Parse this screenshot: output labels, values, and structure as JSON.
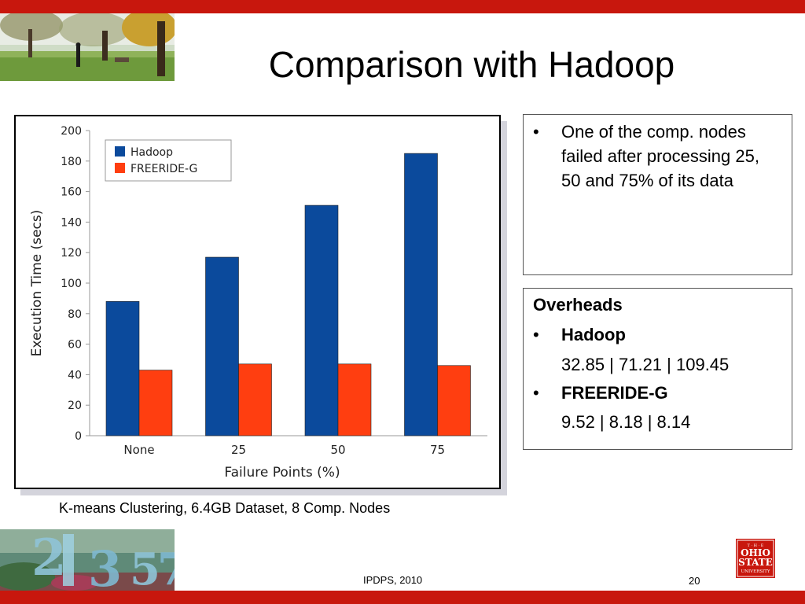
{
  "slide": {
    "title": "Comparison with Hadoop",
    "caption": "K-means Clustering, 6.4GB Dataset, 8 Comp. Nodes",
    "footer": "IPDPS, 2010",
    "page_number": "20",
    "accent_color": "#c8170d"
  },
  "notes_box": {
    "bullet": "•",
    "text": "One of the comp. nodes failed after processing 25, 50 and 75% of its data"
  },
  "overheads_box": {
    "title": "Overheads",
    "items": [
      {
        "name": "Hadoop",
        "values": "32.85 | 71.21 | 109.45"
      },
      {
        "name": "FREERIDE-G",
        "values": "9.52 | 8.18 | 8.14"
      }
    ]
  },
  "logo": {
    "top": "T · H · E",
    "line1": "OHIO",
    "line2": "STATE",
    "line3": "UNIVERSITY"
  },
  "chart_data": {
    "type": "bar",
    "title": "",
    "xlabel": "Failure Points (%)",
    "ylabel": "Execution Time (secs)",
    "categories": [
      "None",
      "25",
      "50",
      "75"
    ],
    "series": [
      {
        "name": "Hadoop",
        "color": "#0b4a9c",
        "values": [
          88,
          117,
          151,
          185
        ]
      },
      {
        "name": "FREERIDE-G",
        "color": "#ff3e10",
        "values": [
          43,
          47,
          47,
          46
        ]
      }
    ],
    "ylim": [
      0,
      200
    ],
    "yticks": [
      0,
      20,
      40,
      60,
      80,
      100,
      120,
      140,
      160,
      180,
      200
    ],
    "grid": false,
    "legend_position": "top-left"
  }
}
